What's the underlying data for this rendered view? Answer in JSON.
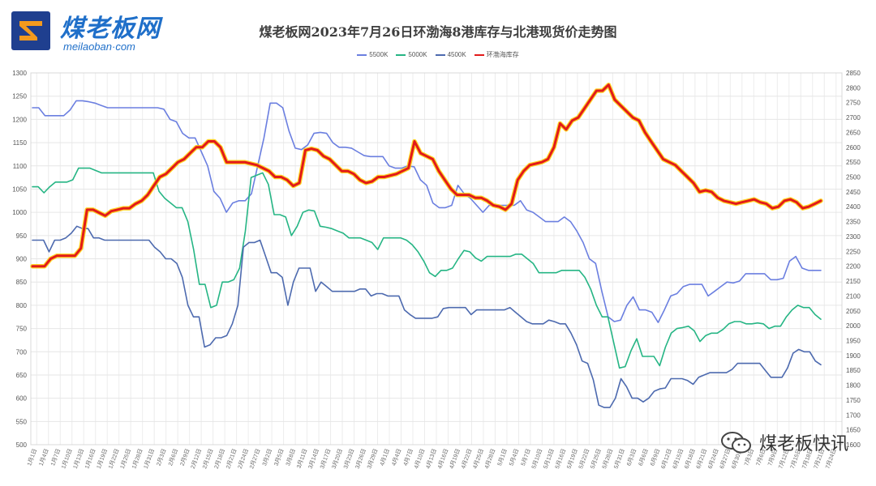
{
  "logo": {
    "cn": "煤老板网",
    "en": "meilaoban·com"
  },
  "footer": {
    "brand": "煤老板快讯"
  },
  "chart_data": {
    "type": "line",
    "title": "煤老板网2023年7月26日环渤海8港库存与北港现货价走势图",
    "legend_position": "top",
    "grid": true,
    "left_axis": {
      "min": 500,
      "max": 1300,
      "step": 50
    },
    "right_axis": {
      "min": 1600,
      "max": 2850,
      "step": 50
    },
    "x_ticks": [
      "1月1日",
      "1月4日",
      "1月7日",
      "1月10日",
      "1月13日",
      "1月16日",
      "1月19日",
      "1月22日",
      "1月25日",
      "1月28日",
      "1月31日",
      "2月3日",
      "2月6日",
      "2月9日",
      "2月12日",
      "2月15日",
      "2月18日",
      "2月21日",
      "2月24日",
      "2月27日",
      "3月2日",
      "3月5日",
      "3月8日",
      "3月11日",
      "3月14日",
      "3月17日",
      "3月20日",
      "3月23日",
      "3月26日",
      "3月29日",
      "4月1日",
      "4月4日",
      "4月7日",
      "4月10日",
      "4月13日",
      "4月16日",
      "4月19日",
      "4月22日",
      "4月25日",
      "4月28日",
      "5月1日",
      "5月4日",
      "5月7日",
      "5月10日",
      "5月13日",
      "5月16日",
      "5月19日",
      "5月22日",
      "5月25日",
      "5月28日",
      "5月31日",
      "6月3日",
      "6月6日",
      "6月9日",
      "6月12日",
      "6月15日",
      "6月18日",
      "6月21日",
      "6月24日",
      "6月27日",
      "6月30日",
      "7月3日",
      "7月6日",
      "7月9日",
      "7月12日",
      "7月15日",
      "7月18日",
      "7月21日",
      "7月24日"
    ],
    "series": [
      {
        "name": "5500K",
        "color": "#6b7fe0",
        "axis": "left",
        "width": 1.6,
        "values": [
          1225,
          1225,
          1208,
          1208,
          1208,
          1208,
          1220,
          1240,
          1240,
          1238,
          1235,
          1230,
          1225,
          1225,
          1225,
          1225,
          1225,
          1225,
          1225,
          1225,
          1225,
          1222,
          1200,
          1195,
          1170,
          1160,
          1160,
          1130,
          1100,
          1045,
          1030,
          1000,
          1020,
          1025,
          1025,
          1040,
          1100,
          1160,
          1235,
          1235,
          1225,
          1175,
          1138,
          1135,
          1145,
          1170,
          1172,
          1170,
          1150,
          1140,
          1140,
          1138,
          1130,
          1122,
          1120,
          1120,
          1120,
          1100,
          1095,
          1095,
          1100,
          1098,
          1070,
          1058,
          1020,
          1010,
          1010,
          1015,
          1058,
          1040,
          1030,
          1015,
          1000,
          1015,
          1015,
          1015,
          1015,
          1015,
          1025,
          1005,
          1000,
          990,
          980,
          980,
          980,
          990,
          980,
          960,
          935,
          900,
          890,
          830,
          775,
          765,
          768,
          800,
          818,
          790,
          790,
          785,
          763,
          790,
          820,
          825,
          840,
          845,
          845,
          845,
          820,
          830,
          840,
          850,
          848,
          852,
          868,
          868,
          868,
          868,
          855,
          855,
          858,
          895,
          905,
          880,
          875,
          875,
          875
        ]
      },
      {
        "name": "5000K",
        "color": "#25b584",
        "axis": "left",
        "width": 1.6,
        "values": [
          1055,
          1055,
          1042,
          1055,
          1065,
          1065,
          1065,
          1070,
          1095,
          1095,
          1095,
          1090,
          1085,
          1085,
          1085,
          1085,
          1085,
          1085,
          1085,
          1085,
          1085,
          1085,
          1045,
          1030,
          1020,
          1010,
          1010,
          980,
          920,
          845,
          845,
          795,
          800,
          850,
          850,
          855,
          880,
          960,
          1075,
          1080,
          1085,
          1060,
          995,
          995,
          990,
          950,
          970,
          1000,
          1005,
          1003,
          970,
          968,
          965,
          960,
          955,
          945,
          945,
          945,
          940,
          935,
          920,
          945,
          945,
          945,
          945,
          940,
          930,
          915,
          895,
          870,
          862,
          875,
          875,
          880,
          900,
          918,
          915,
          902,
          895,
          905,
          905,
          905,
          905,
          905,
          910,
          910,
          900,
          890,
          870,
          870,
          870,
          870,
          875,
          875,
          875,
          875,
          860,
          835,
          800,
          775,
          775,
          720,
          665,
          668,
          702,
          728,
          690,
          690,
          690,
          670,
          710,
          740,
          750,
          752,
          755,
          745,
          722,
          735,
          740,
          740,
          748,
          760,
          765,
          765,
          760,
          760,
          762,
          760,
          750,
          755,
          755,
          775,
          790,
          800,
          795,
          795,
          780,
          770
        ]
      },
      {
        "name": "4500K",
        "color": "#4d6aaf",
        "axis": "left",
        "width": 1.6,
        "values": [
          940,
          940,
          940,
          915,
          940,
          940,
          945,
          955,
          970,
          965,
          965,
          945,
          945,
          940,
          940,
          940,
          940,
          940,
          940,
          940,
          940,
          940,
          925,
          915,
          900,
          900,
          890,
          860,
          800,
          775,
          775,
          710,
          715,
          730,
          730,
          735,
          760,
          800,
          925,
          935,
          935,
          940,
          905,
          870,
          870,
          860,
          800,
          850,
          880,
          880,
          880,
          830,
          850,
          840,
          830,
          830,
          830,
          830,
          830,
          835,
          835,
          820,
          825,
          825,
          820,
          820,
          820,
          790,
          780,
          772,
          772,
          772,
          772,
          775,
          793,
          795,
          795,
          795,
          795,
          780,
          790,
          790,
          790,
          790,
          790,
          790,
          795,
          785,
          775,
          765,
          760,
          760,
          760,
          768,
          765,
          760,
          760,
          740,
          715,
          680,
          675,
          640,
          585,
          580,
          580,
          600,
          642,
          625,
          600,
          600,
          592,
          600,
          615,
          620,
          622,
          642,
          642,
          642,
          638,
          630,
          645,
          650,
          655,
          655,
          655,
          655,
          662,
          675,
          675,
          675,
          675,
          675,
          660,
          645,
          645,
          645,
          665,
          697,
          705,
          700,
          700,
          680,
          672
        ]
      },
      {
        "name": "环渤海库存",
        "color": "#e21a1a",
        "axis": "right",
        "width": 3,
        "values": [
          2200,
          2200,
          2200,
          2225,
          2235,
          2235,
          2235,
          2235,
          2260,
          2390,
          2390,
          2380,
          2370,
          2385,
          2390,
          2395,
          2395,
          2410,
          2420,
          2440,
          2470,
          2500,
          2510,
          2530,
          2550,
          2560,
          2580,
          2600,
          2600,
          2620,
          2620,
          2600,
          2550,
          2550,
          2550,
          2550,
          2545,
          2540,
          2530,
          2520,
          2500,
          2500,
          2490,
          2470,
          2480,
          2590,
          2595,
          2590,
          2570,
          2560,
          2540,
          2520,
          2520,
          2510,
          2490,
          2480,
          2485,
          2500,
          2500,
          2505,
          2510,
          2520,
          2530,
          2620,
          2580,
          2570,
          2560,
          2520,
          2490,
          2460,
          2440,
          2440,
          2440,
          2430,
          2430,
          2420,
          2405,
          2400,
          2390,
          2410,
          2490,
          2520,
          2540,
          2545,
          2550,
          2560,
          2600,
          2680,
          2660,
          2690,
          2700,
          2730,
          2760,
          2790,
          2790,
          2810,
          2760,
          2740,
          2720,
          2700,
          2690,
          2650,
          2620,
          2590,
          2560,
          2550,
          2540,
          2520,
          2500,
          2480,
          2450,
          2455,
          2450,
          2430,
          2420,
          2415,
          2410,
          2415,
          2420,
          2425,
          2415,
          2410,
          2395,
          2400,
          2420,
          2425,
          2415,
          2395,
          2400,
          2410,
          2420
        ]
      }
    ]
  }
}
